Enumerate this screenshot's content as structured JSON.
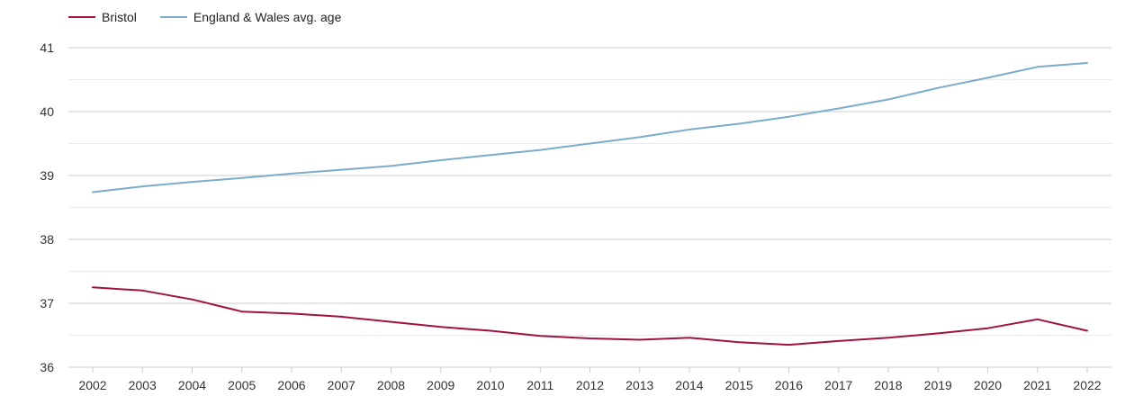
{
  "chart_data": {
    "type": "line",
    "title": "",
    "xlabel": "",
    "ylabel": "",
    "x": [
      "2002",
      "2003",
      "2004",
      "2005",
      "2006",
      "2007",
      "2008",
      "2009",
      "2010",
      "2011",
      "2012",
      "2013",
      "2014",
      "2015",
      "2016",
      "2017",
      "2018",
      "2019",
      "2020",
      "2021",
      "2022"
    ],
    "ylim": [
      36,
      41
    ],
    "yticks": [
      36,
      37,
      38,
      39,
      40,
      41
    ],
    "grid": true,
    "legend_position": "top-left",
    "series": [
      {
        "name": "Bristol",
        "color": "#a0123f",
        "values": [
          37.25,
          37.2,
          37.06,
          36.87,
          36.84,
          36.79,
          36.71,
          36.63,
          36.57,
          36.49,
          36.45,
          36.43,
          36.46,
          36.39,
          36.35,
          36.41,
          36.46,
          36.53,
          36.61,
          36.75,
          36.57
        ]
      },
      {
        "name": "England & Wales avg. age",
        "color": "#7aaccc",
        "values": [
          38.74,
          38.83,
          38.9,
          38.96,
          39.03,
          39.09,
          39.15,
          39.24,
          39.32,
          39.4,
          39.5,
          39.6,
          39.72,
          39.81,
          39.92,
          40.05,
          40.19,
          40.37,
          40.53,
          40.7,
          40.76
        ]
      }
    ]
  }
}
